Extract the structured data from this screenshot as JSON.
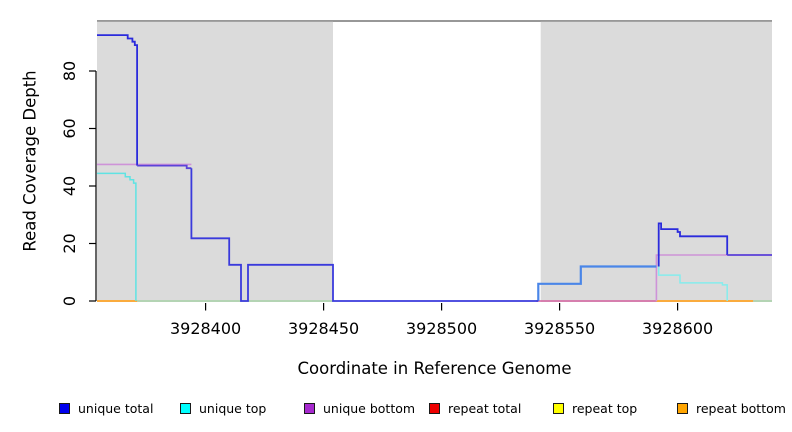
{
  "figure": {
    "xlabel": "Coordinate in Reference Genome",
    "ylabel": "Read Coverage Depth"
  },
  "chart_data": {
    "type": "line",
    "title": "",
    "xlabel": "Coordinate in Reference Genome",
    "ylabel": "Read Coverage Depth",
    "x_domain": [
      3928354,
      3928640
    ],
    "y_domain": [
      0,
      97.5
    ],
    "x_ticks": [
      3928400,
      3928450,
      3928500,
      3928550,
      3928600
    ],
    "y_ticks": [
      0,
      20,
      40,
      60,
      80
    ],
    "grid": "off",
    "legend_position": "bottom",
    "plot_bg": "#FFFFFF",
    "shaded_region_color": "#DBDBDB",
    "background_regions": [
      {
        "name": "shaded-region-left",
        "x0": 3928354,
        "x1": 3928454
      },
      {
        "name": "shaded-region-right",
        "x0": 3928542,
        "x1": 3928640
      }
    ],
    "gap_top_line": {
      "x0": 3928354,
      "x1": 3928640,
      "color": "#8A8A8A"
    },
    "series": [
      {
        "name": "baseline-green-left",
        "legend": "",
        "color": "#9CCF9C",
        "width": 1.2,
        "points": [
          [
            3928371,
            0
          ],
          [
            3928454,
            0
          ]
        ]
      },
      {
        "name": "baseline-green-right",
        "legend": "",
        "color": "#9CCF9C",
        "width": 1.2,
        "points": [
          [
            3928632,
            0
          ],
          [
            3928640,
            0
          ]
        ]
      },
      {
        "name": "repeat-bottom-left",
        "legend": "repeat bottom",
        "color": "#FFA428",
        "width": 1.8,
        "points": [
          [
            3928354,
            0
          ],
          [
            3928371,
            0
          ]
        ]
      },
      {
        "name": "repeat-bottom-right",
        "legend": "repeat bottom",
        "color": "#FFA428",
        "width": 1.8,
        "points": [
          [
            3928591,
            0
          ],
          [
            3928632,
            0
          ]
        ]
      },
      {
        "name": "repeat-total-right",
        "legend": "repeat total",
        "color": "#D4619F",
        "width": 1.5,
        "points": [
          [
            3928540,
            0
          ],
          [
            3928591,
            0
          ]
        ]
      },
      {
        "name": "unique-bottom-left",
        "legend": "unique bottom",
        "color": "#CE93D8",
        "width": 1.6,
        "points": [
          [
            3928354,
            47.5
          ],
          [
            3928394,
            47.5
          ]
        ]
      },
      {
        "name": "unique-bottom-right",
        "legend": "unique bottom",
        "color": "#CE93D8",
        "width": 1.6,
        "points": [
          [
            3928591,
            0
          ],
          [
            3928591,
            16
          ],
          [
            3928640,
            16
          ]
        ]
      },
      {
        "name": "unique-top-left",
        "legend": "unique top",
        "color": "#5FE3E3",
        "width": 1.5,
        "points": [
          [
            3928354,
            44.4
          ],
          [
            3928366,
            44.4
          ],
          [
            3928366,
            43.2
          ],
          [
            3928368,
            43.2
          ],
          [
            3928368,
            42.2
          ],
          [
            3928369.5,
            42.2
          ],
          [
            3928369.5,
            41
          ],
          [
            3928370.5,
            41
          ],
          [
            3928370.5,
            0
          ]
        ]
      },
      {
        "name": "unique-top-right",
        "legend": "unique top",
        "color": "#85EDED",
        "width": 1.5,
        "points": [
          [
            3928592,
            12
          ],
          [
            3928592,
            9
          ],
          [
            3928601,
            9
          ],
          [
            3928601,
            6.3
          ],
          [
            3928619,
            6.3
          ],
          [
            3928619,
            5.6
          ],
          [
            3928621,
            5.6
          ],
          [
            3928621,
            0
          ]
        ]
      },
      {
        "name": "unique-total-mid-rise",
        "legend": "unique total",
        "color": "#4A86E8",
        "width": 2.2,
        "points": [
          [
            3928541,
            0
          ],
          [
            3928541,
            6
          ],
          [
            3928559,
            6
          ],
          [
            3928559,
            12
          ],
          [
            3928591,
            12
          ]
        ]
      },
      {
        "name": "unique-total-left-high",
        "legend": "unique total",
        "color": "#2B2BDC",
        "width": 1.8,
        "points": [
          [
            3928354,
            92.5
          ],
          [
            3928367,
            92.5
          ],
          [
            3928367,
            91.3
          ],
          [
            3928369,
            91.3
          ],
          [
            3928369,
            90.2
          ],
          [
            3928370,
            90.2
          ],
          [
            3928370,
            89
          ],
          [
            3928371,
            89
          ],
          [
            3928371,
            47.1
          ]
        ]
      },
      {
        "name": "unique-total-over-bottom",
        "legend": "unique total",
        "color": "#5B43D8",
        "width": 1.8,
        "points": [
          [
            3928371,
            47.1
          ],
          [
            3928392,
            47.1
          ],
          [
            3928392,
            46.2
          ],
          [
            3928394,
            46.2
          ]
        ]
      },
      {
        "name": "unique-total-left-low",
        "legend": "unique total",
        "color": "#3A3ADC",
        "width": 1.8,
        "points": [
          [
            3928394,
            46.2
          ],
          [
            3928394,
            21.8
          ],
          [
            3928410,
            21.8
          ],
          [
            3928410,
            12.6
          ],
          [
            3928415,
            12.6
          ],
          [
            3928415,
            0
          ],
          [
            3928418,
            0
          ],
          [
            3928418,
            12.6
          ],
          [
            3928454,
            12.6
          ],
          [
            3928454,
            0
          ],
          [
            3928541,
            0
          ]
        ]
      },
      {
        "name": "unique-total-right-peak",
        "legend": "unique total",
        "color": "#2B2BDC",
        "width": 1.8,
        "points": [
          [
            3928592,
            12
          ],
          [
            3928592,
            27
          ],
          [
            3928593,
            27
          ],
          [
            3928593,
            25
          ],
          [
            3928600,
            25
          ],
          [
            3928600,
            24
          ],
          [
            3928601,
            24
          ],
          [
            3928601,
            22.5
          ],
          [
            3928621,
            22.5
          ],
          [
            3928621,
            16
          ]
        ]
      },
      {
        "name": "unique-total-right-tail",
        "legend": "unique total",
        "color": "#5B43D8",
        "width": 1.8,
        "points": [
          [
            3928621,
            16
          ],
          [
            3928640,
            16
          ]
        ]
      }
    ],
    "legend": [
      {
        "label": "unique total",
        "fill": "#0000EE"
      },
      {
        "label": "unique top",
        "fill": "#00FFFF"
      },
      {
        "label": "unique bottom",
        "fill": "#A72ACF"
      },
      {
        "label": "repeat total",
        "fill": "#EE0000"
      },
      {
        "label": "repeat top",
        "fill": "#FFFF00"
      },
      {
        "label": "repeat bottom",
        "fill": "#FFA500"
      }
    ]
  }
}
